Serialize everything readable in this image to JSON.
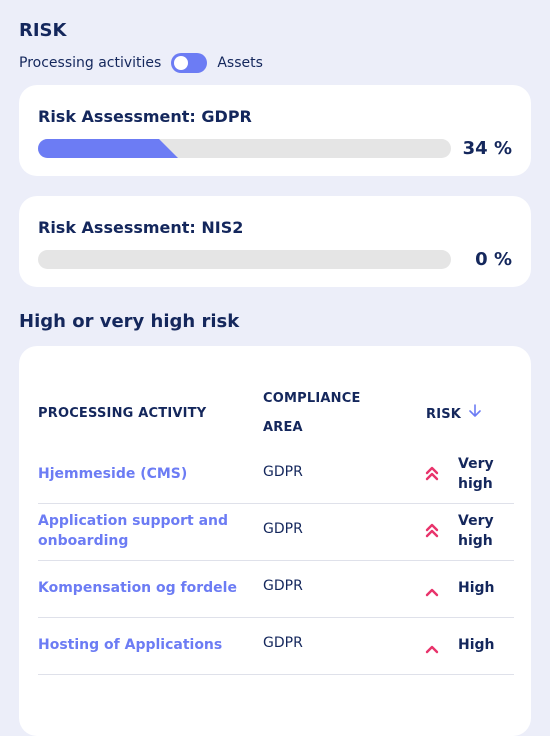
{
  "page": {
    "title": "RISK",
    "toggle": {
      "left_label": "Processing activities",
      "right_label": "Assets"
    }
  },
  "assessments": [
    {
      "title": "Risk Assessment: GDPR",
      "percent_label": "34 %",
      "progress": 0.34
    },
    {
      "title": "Risk Assessment: NIS2",
      "percent_label": "0 %",
      "progress": 0.0
    }
  ],
  "high_risk": {
    "title": "High or very high risk",
    "headers": {
      "activity": "PROCESSING ACTIVITY",
      "area_line1": "COMPLIANCE",
      "area_line2": "AREA",
      "risk": "RISK"
    },
    "rows": [
      {
        "activity": "Hjemmeside (CMS)",
        "area": "GDPR",
        "risk": "Very high",
        "level": "very-high"
      },
      {
        "activity": "Application support and onboarding",
        "area": "GDPR",
        "risk": "Very high",
        "level": "very-high"
      },
      {
        "activity": "Kompensation og fordele",
        "area": "GDPR",
        "risk": "High",
        "level": "high"
      },
      {
        "activity": "Hosting of Applications",
        "area": "GDPR",
        "risk": "High",
        "level": "high"
      }
    ]
  },
  "icons": {
    "sort": "arrow-down-icon",
    "very_high": "double-chevron-up-icon",
    "high": "chevron-up-icon"
  },
  "colors": {
    "accent": "#6c7cf4",
    "text": "#14275c",
    "risk": "#e8336b",
    "background": "#eceef9",
    "track": "#e5e5e5"
  }
}
